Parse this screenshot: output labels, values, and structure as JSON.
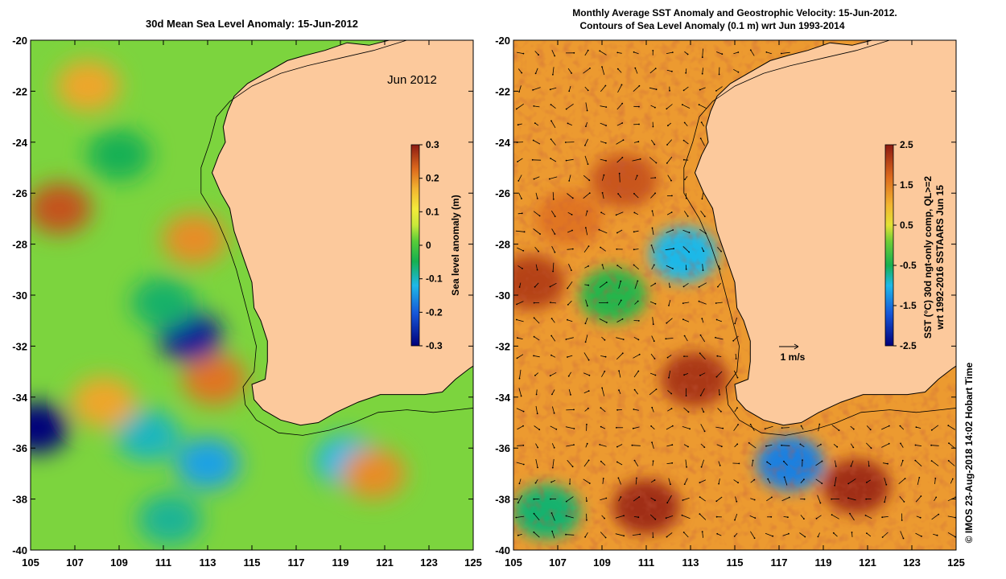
{
  "colors": {
    "land": "#fcc99c",
    "coast": "#000000",
    "label_color": "#000000"
  },
  "axis": {
    "lon_min": 105,
    "lon_max": 125,
    "lat_min": -40,
    "lat_max": -20,
    "lon_ticks": [
      105,
      107,
      109,
      111,
      113,
      115,
      117,
      119,
      121,
      123,
      125
    ],
    "lat_ticks": [
      -20,
      -22,
      -24,
      -26,
      -28,
      -30,
      -32,
      -34,
      -36,
      -38,
      -40
    ]
  },
  "left_panel": {
    "title": "30d Mean Sea Level Anomaly: 15-Jun-2012",
    "date_label": "Jun 2012",
    "colorbar": {
      "label": "Sea level anomaly (m)",
      "min": -0.3,
      "max": 0.3,
      "ticks": [
        0.3,
        0.2,
        0.1,
        0,
        -0.1,
        -0.2,
        -0.3
      ],
      "tick_labels": [
        "0.3",
        "0.2",
        "0.1",
        "0",
        "-0.1",
        "-0.2",
        "-0.3"
      ]
    },
    "features": [
      {
        "lon": 106.3,
        "lat": -26.6,
        "value": 0.25
      },
      {
        "lon": 107.6,
        "lat": -21.8,
        "value": 0.18
      },
      {
        "lon": 112.4,
        "lat": -27.8,
        "value": 0.2
      },
      {
        "lon": 113.3,
        "lat": -33.3,
        "value": 0.22
      },
      {
        "lon": 112.2,
        "lat": -31.6,
        "value": -0.27
      },
      {
        "lon": 105.3,
        "lat": -35.2,
        "value": -0.3
      },
      {
        "lon": 113.0,
        "lat": -36.6,
        "value": -0.14
      },
      {
        "lon": 119.3,
        "lat": -36.5,
        "value": -0.12
      },
      {
        "lon": 120.5,
        "lat": -37.0,
        "value": 0.2
      },
      {
        "lon": 110.3,
        "lat": -35.5,
        "value": -0.1
      },
      {
        "lon": 111.3,
        "lat": -38.8,
        "value": -0.08
      },
      {
        "lon": 109.0,
        "lat": -24.5,
        "value": -0.05
      },
      {
        "lon": 108.3,
        "lat": -34.2,
        "value": 0.18
      },
      {
        "lon": 111.0,
        "lat": -30.3,
        "value": -0.06
      }
    ]
  },
  "right_panel": {
    "title_line1": "Monthly Average SST Anomaly  and Geostrophic Velocity: 15-Jun-2012.",
    "title_line2": "Contours of Sea Level Anomaly (0.1 m) wrt Jun 1993-2014",
    "vector_scale_label": "1 m/s",
    "colorbar": {
      "label_line1": "SST (°C) 30d ngt-only comp, QL>=2",
      "label_line2": "wrt 1992-2016 SSTAARS Jun 15",
      "min": -2.5,
      "max": 2.5,
      "ticks": [
        2.5,
        1.5,
        0.5,
        -0.5,
        -1.5,
        -2.5
      ],
      "tick_labels": [
        "2.5",
        "1.5",
        "0.5",
        "-0.5",
        "-1.5",
        "-2.5"
      ]
    },
    "features": [
      {
        "lon": 111.0,
        "lat": -38.3,
        "value": 2.3
      },
      {
        "lon": 113.2,
        "lat": -33.3,
        "value": 2.2
      },
      {
        "lon": 120.5,
        "lat": -37.5,
        "value": 2.3
      },
      {
        "lon": 105.8,
        "lat": -29.5,
        "value": 2.1
      },
      {
        "lon": 110.0,
        "lat": -25.5,
        "value": 1.9
      },
      {
        "lon": 107.5,
        "lat": -27.0,
        "value": 1.6
      },
      {
        "lon": 117.5,
        "lat": -36.6,
        "value": -1.4
      },
      {
        "lon": 112.7,
        "lat": -28.4,
        "value": -1.0
      },
      {
        "lon": 109.5,
        "lat": -30.0,
        "value": -0.4
      },
      {
        "lon": 106.5,
        "lat": -38.5,
        "value": -0.6
      }
    ]
  },
  "credit": "© IMOS 23-Aug-2018 14:02 Hobart Time"
}
